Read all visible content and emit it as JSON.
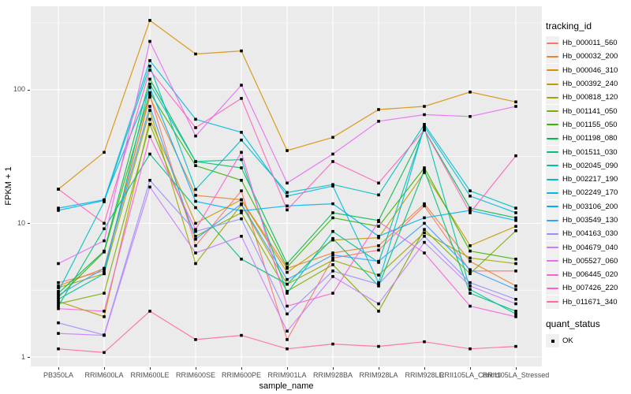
{
  "figure": {
    "background": "#FFFFFF",
    "panel_background": "#EBEBEB",
    "gridline_color": "#FFFFFF",
    "tick_label_color": "#4D4D4D",
    "point_color": "#000000"
  },
  "axes": {
    "x_title": "sample_name",
    "y_title": "FPKM + 1",
    "y_tick_labels": [
      "1",
      "10",
      "100"
    ]
  },
  "legends": {
    "tracking": {
      "title": "tracking_id"
    },
    "quant": {
      "title": "quant_status",
      "items": [
        {
          "label": "OK",
          "marker": "black-square"
        }
      ]
    }
  },
  "chart_data": {
    "type": "line",
    "title": "",
    "xlabel": "sample_name",
    "ylabel": "FPKM + 1",
    "x_type": "categorical",
    "y_scale": "log10",
    "ylim": [
      0.95,
      480
    ],
    "y_major_ticks": [
      1,
      10,
      100
    ],
    "y_minor_gridlines": [
      3.162,
      31.62,
      316.2
    ],
    "grid": true,
    "legend_position": "right",
    "point_marker": "small black square (quant_status = OK)",
    "categories": [
      "PB350LA",
      "RRIM600LA",
      "RRIM600LE",
      "RRIM600SE",
      "RRIM600PE",
      "RRIM901LA",
      "RRIM928BA",
      "RRIM928LA",
      "RRIM928LE",
      "RRII105LA_Control",
      "RRII105LA_Stressed"
    ],
    "series": [
      {
        "name": "Hb_000011_560",
        "color": "#F8766D",
        "values": [
          3.6,
          4.4,
          91,
          6.8,
          17.5,
          1.35,
          5.5,
          6.3,
          13.5,
          4.4,
          4.4
        ]
      },
      {
        "name": "Hb_000032_200",
        "color": "#EA8331",
        "values": [
          3.4,
          4.6,
          88,
          16.2,
          15,
          4.6,
          6.0,
          6.8,
          14,
          5.2,
          3.4
        ]
      },
      {
        "name": "Hb_000046_310",
        "color": "#D89000",
        "values": [
          18,
          34,
          330,
          185,
          195,
          35,
          44,
          71,
          75,
          96,
          81
        ]
      },
      {
        "name": "Hb_000392_240",
        "color": "#C09B00",
        "values": [
          2.6,
          2.0,
          60,
          10,
          15,
          4.3,
          7.5,
          7.8,
          24,
          6.8,
          9.5
        ]
      },
      {
        "name": "Hb_000818_120",
        "color": "#A3A500",
        "values": [
          3.3,
          4.2,
          70,
          5.0,
          13.8,
          3.5,
          5.3,
          4.1,
          8.5,
          5.5,
          5.0
        ]
      },
      {
        "name": "Hb_001141_050",
        "color": "#7CAE00",
        "values": [
          2.5,
          3.0,
          55,
          8.0,
          12,
          3.1,
          4.9,
          2.2,
          9.0,
          4.2,
          8.8
        ]
      },
      {
        "name": "Hb_001155_050",
        "color": "#39B600",
        "values": [
          2.8,
          6.1,
          95,
          27,
          21,
          4.7,
          11,
          9.5,
          26,
          6.2,
          5.4
        ]
      },
      {
        "name": "Hb_001198_080",
        "color": "#00BB4E",
        "values": [
          3.0,
          6.2,
          120,
          29,
          26,
          5.0,
          12,
          10.5,
          50,
          13,
          11
        ]
      },
      {
        "name": "Hb_001511_030",
        "color": "#00BF7D",
        "values": [
          2.4,
          9.1,
          33,
          13.1,
          5.4,
          3.5,
          7.7,
          3.4,
          25,
          3.0,
          2.2
        ]
      },
      {
        "name": "Hb_002045_090",
        "color": "#00C1A3",
        "values": [
          2.7,
          4.2,
          110,
          29,
          30,
          3.0,
          8.7,
          5.1,
          52,
          3.2,
          2.1
        ]
      },
      {
        "name": "Hb_002217_190",
        "color": "#00BFC4",
        "values": [
          3.1,
          14.5,
          150,
          17.9,
          42,
          17,
          19.5,
          16.3,
          55,
          17.5,
          13
        ]
      },
      {
        "name": "Hb_002249_170",
        "color": "#00BAE0",
        "values": [
          12.5,
          14.8,
          165,
          60,
          48,
          16,
          19,
          3.6,
          53,
          16,
          12
        ]
      },
      {
        "name": "Hb_003106_200",
        "color": "#00B0F6",
        "values": [
          13,
          15,
          104,
          14.6,
          12.4,
          13.5,
          14,
          8.0,
          11,
          12.5,
          10.5
        ]
      },
      {
        "name": "Hb_003549_130",
        "color": "#35A2FF",
        "values": [
          2.9,
          4.6,
          75,
          7.6,
          14,
          3.8,
          5.8,
          5.2,
          10,
          4.5,
          3.2
        ]
      },
      {
        "name": "Hb_004163_030",
        "color": "#9590FF",
        "values": [
          1.8,
          1.46,
          21,
          8.7,
          10.8,
          2.1,
          4.4,
          3.5,
          8.0,
          3.6,
          2.7
        ]
      },
      {
        "name": "Hb_004679_040",
        "color": "#C77CFF",
        "values": [
          1.5,
          1.45,
          18.7,
          6.0,
          8.0,
          1.56,
          4.0,
          2.5,
          7.2,
          3.4,
          2.5
        ]
      },
      {
        "name": "Hb_005527_060",
        "color": "#E76BF3",
        "values": [
          5.0,
          7.4,
          230,
          45,
          108,
          20,
          33,
          58,
          65,
          63,
          75
        ]
      },
      {
        "name": "Hb_006445_020",
        "color": "#FA62DB",
        "values": [
          2.3,
          2.2,
          44.6,
          9.0,
          34,
          2.4,
          3.0,
          10.3,
          6.0,
          2.4,
          2.0
        ]
      },
      {
        "name": "Hb_007426_220",
        "color": "#FF62BC",
        "values": [
          18,
          10,
          140,
          52,
          86,
          12.6,
          29,
          20,
          50,
          12,
          32
        ]
      },
      {
        "name": "Hb_011671_340",
        "color": "#FF6A98",
        "values": [
          1.15,
          1.08,
          2.2,
          1.35,
          1.45,
          1.15,
          1.25,
          1.2,
          1.3,
          1.15,
          1.2
        ]
      }
    ]
  }
}
